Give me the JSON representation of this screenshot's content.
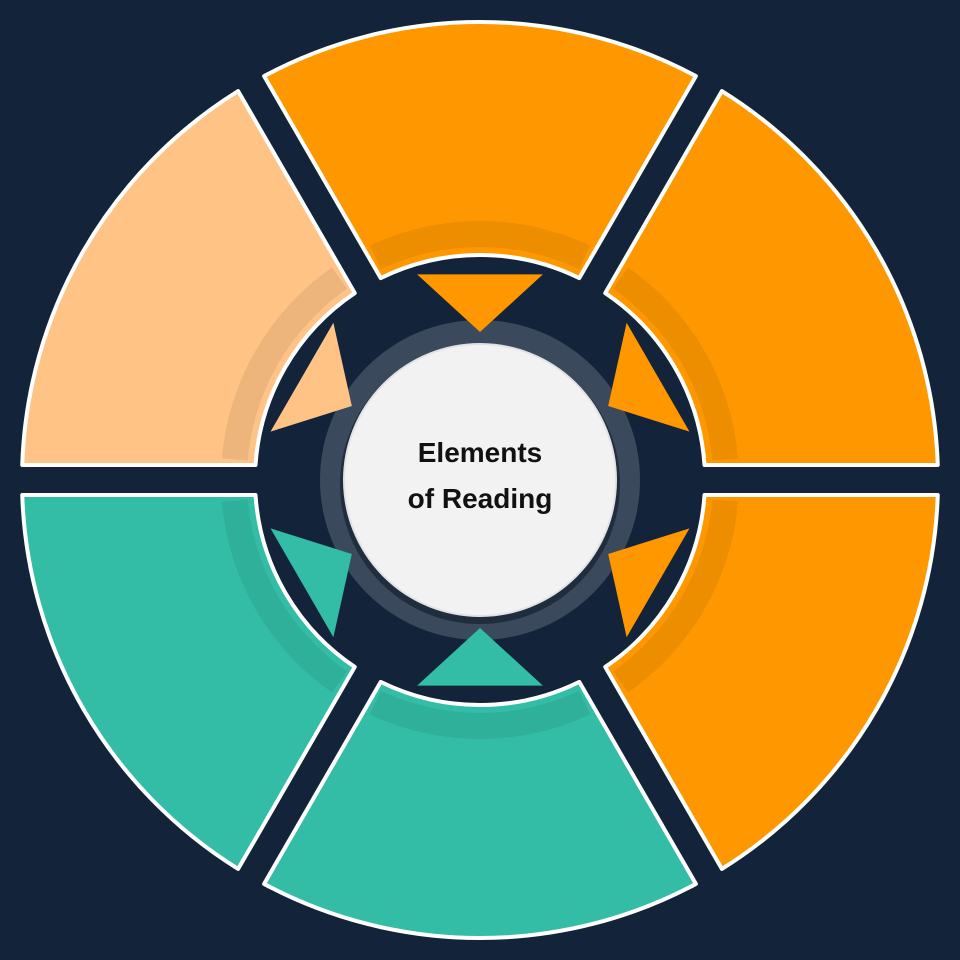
{
  "diagram": {
    "center": {
      "line1": "Elements",
      "line2": "of Reading",
      "color": "#f2f2f2"
    },
    "colors": {
      "background": "#13243a",
      "orange": "#ff9800",
      "light_orange": "#ffc386",
      "teal": "#33bda7",
      "outline": "#ffffff"
    },
    "segments": [
      {
        "id": "top",
        "color": "#ff9800"
      },
      {
        "id": "upper-right",
        "color": "#ff9800"
      },
      {
        "id": "lower-right",
        "color": "#ff9800"
      },
      {
        "id": "bottom",
        "color": "#33bda7"
      },
      {
        "id": "lower-left",
        "color": "#33bda7"
      },
      {
        "id": "upper-left",
        "color": "#ffc386"
      }
    ]
  }
}
